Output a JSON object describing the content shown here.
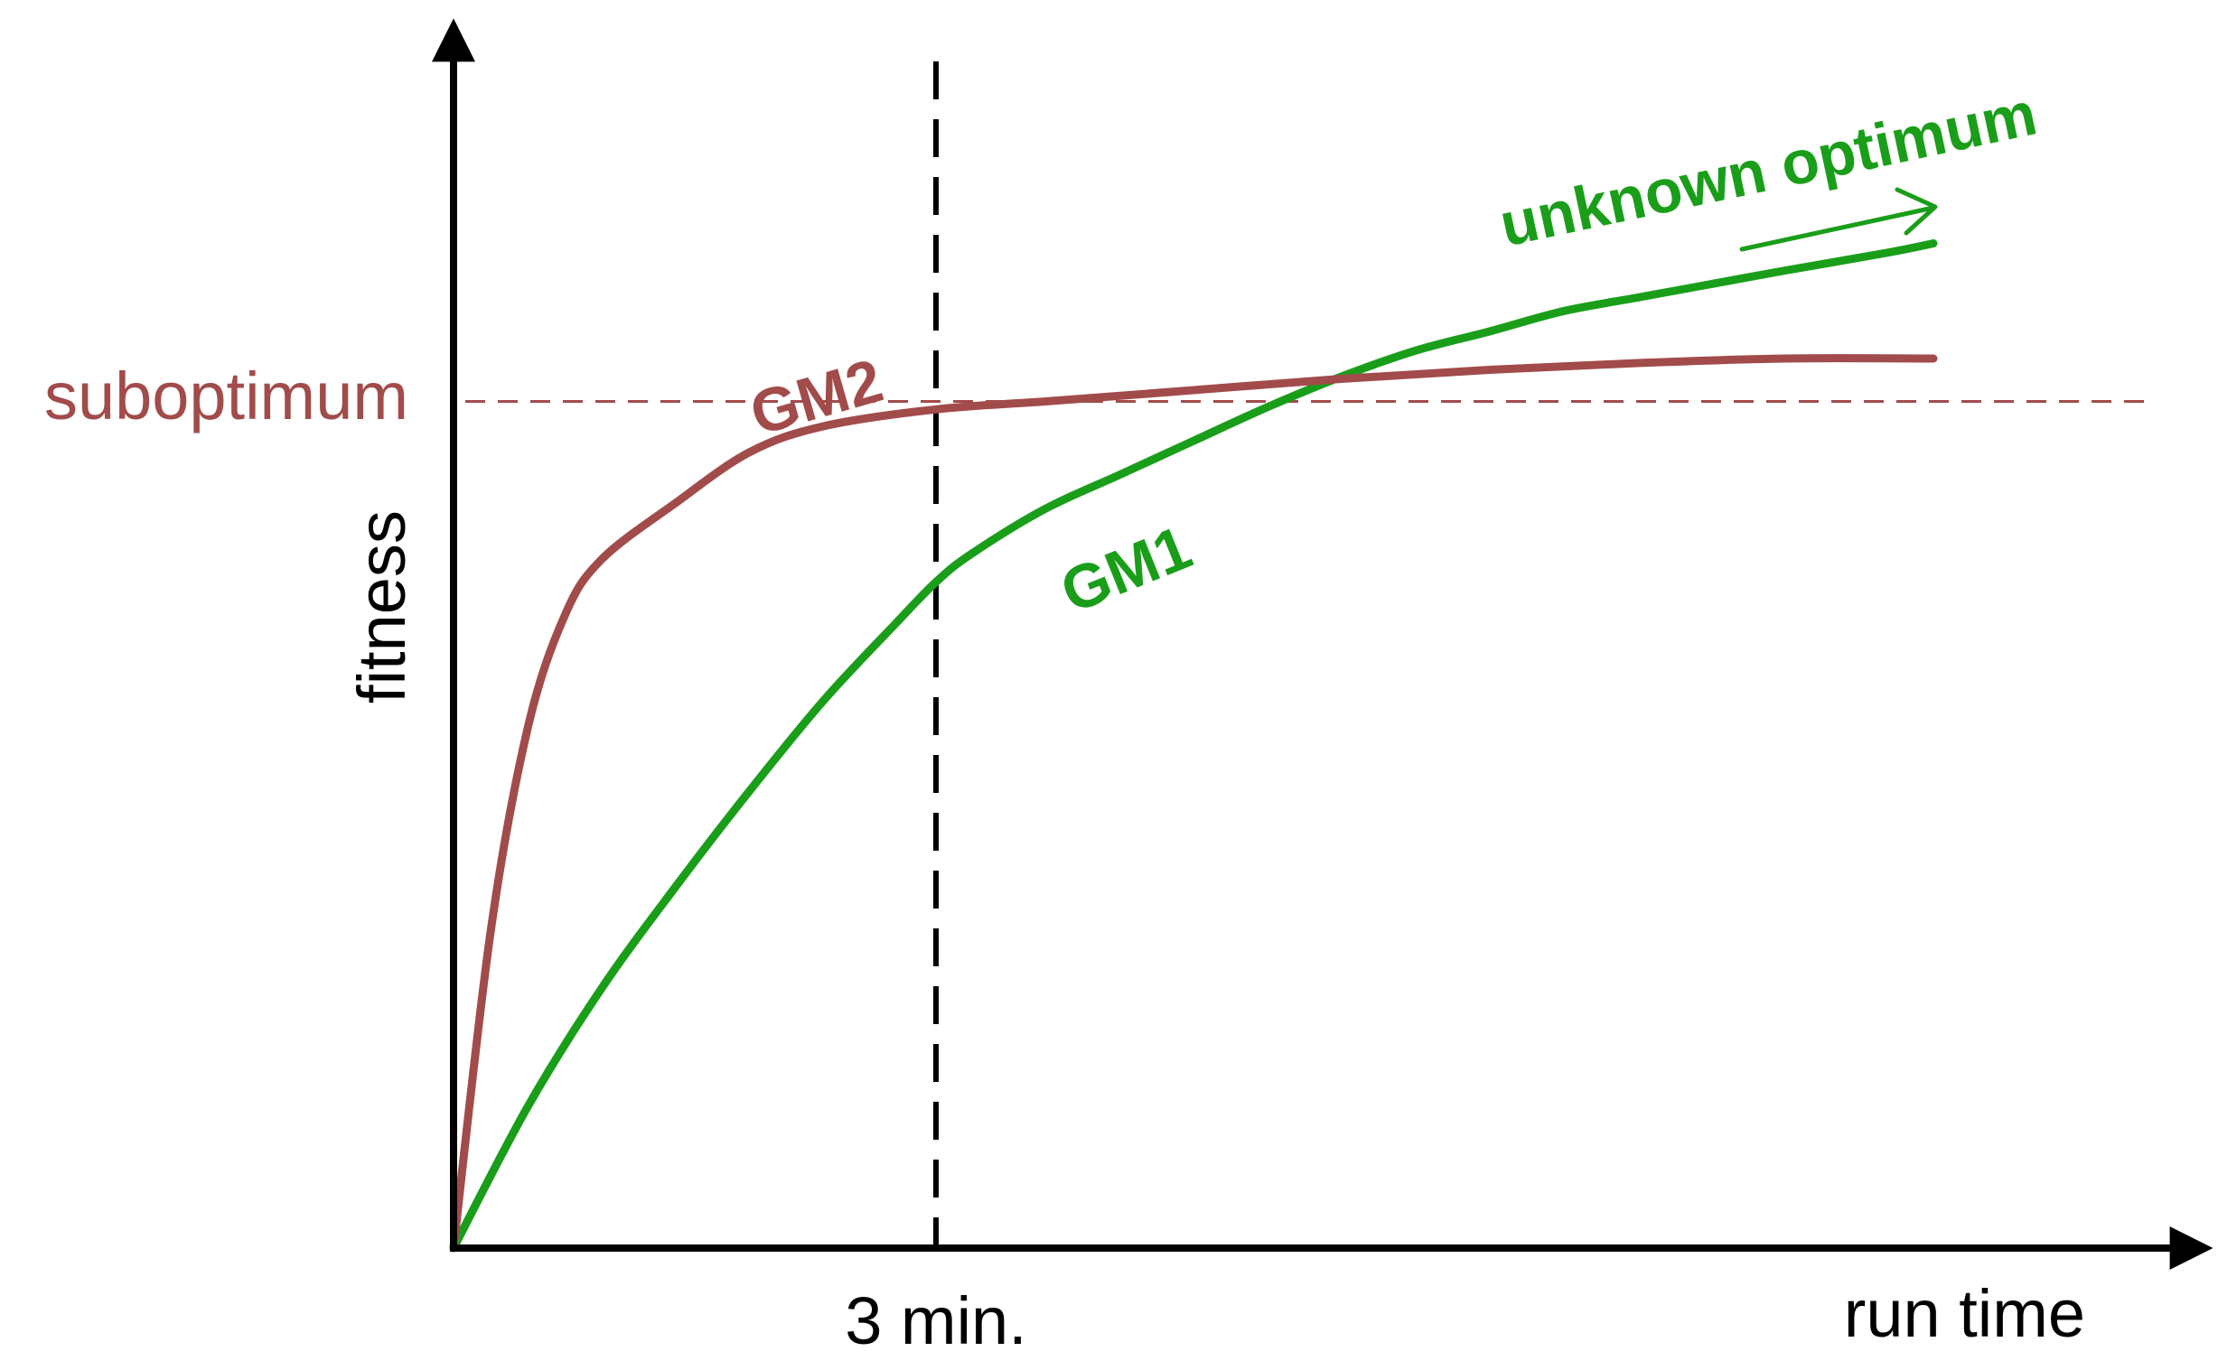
{
  "colors": {
    "gm1": "#1a9e1a",
    "gm2": "#a24b4b",
    "suboptimum": "#a24b4b",
    "axis": "#000000",
    "marker": "#000000"
  },
  "chart_data": {
    "type": "line",
    "title": "",
    "xlabel": "run time",
    "ylabel": "fitness",
    "xlim": [
      0,
      10
    ],
    "ylim": [
      0,
      10
    ],
    "grid": false,
    "legend": "none",
    "x_marker": {
      "x": 3.26,
      "label": "3 min."
    },
    "y_reference": {
      "y": 7.5,
      "label": "suboptimum"
    },
    "annotation": {
      "text": "unknown optimum"
    },
    "series": [
      {
        "name": "GM1",
        "points": [
          [
            0,
            0
          ],
          [
            0.5,
            1.25
          ],
          [
            1.0,
            2.3
          ],
          [
            1.5,
            3.2
          ],
          [
            2.0,
            4.05
          ],
          [
            2.5,
            4.85
          ],
          [
            3.0,
            5.55
          ],
          [
            3.26,
            5.9
          ],
          [
            3.5,
            6.15
          ],
          [
            4.0,
            6.55
          ],
          [
            4.5,
            6.85
          ],
          [
            5.0,
            7.15
          ],
          [
            5.5,
            7.45
          ],
          [
            6.0,
            7.72
          ],
          [
            6.5,
            7.95
          ],
          [
            7.0,
            8.12
          ],
          [
            7.5,
            8.3
          ],
          [
            8.0,
            8.42
          ],
          [
            8.5,
            8.54
          ],
          [
            9.0,
            8.66
          ],
          [
            9.7,
            8.82
          ],
          [
            10.0,
            8.9
          ]
        ]
      },
      {
        "name": "GM2",
        "points": [
          [
            0,
            0
          ],
          [
            0.25,
            2.8
          ],
          [
            0.5,
            4.6
          ],
          [
            0.75,
            5.6
          ],
          [
            1.0,
            6.1
          ],
          [
            1.5,
            6.6
          ],
          [
            2.0,
            7.05
          ],
          [
            2.5,
            7.28
          ],
          [
            3.26,
            7.43
          ],
          [
            4.0,
            7.5
          ],
          [
            5.0,
            7.6
          ],
          [
            6.0,
            7.7
          ],
          [
            7.0,
            7.78
          ],
          [
            8.0,
            7.84
          ],
          [
            9.0,
            7.88
          ],
          [
            10.0,
            7.88
          ]
        ]
      }
    ]
  }
}
